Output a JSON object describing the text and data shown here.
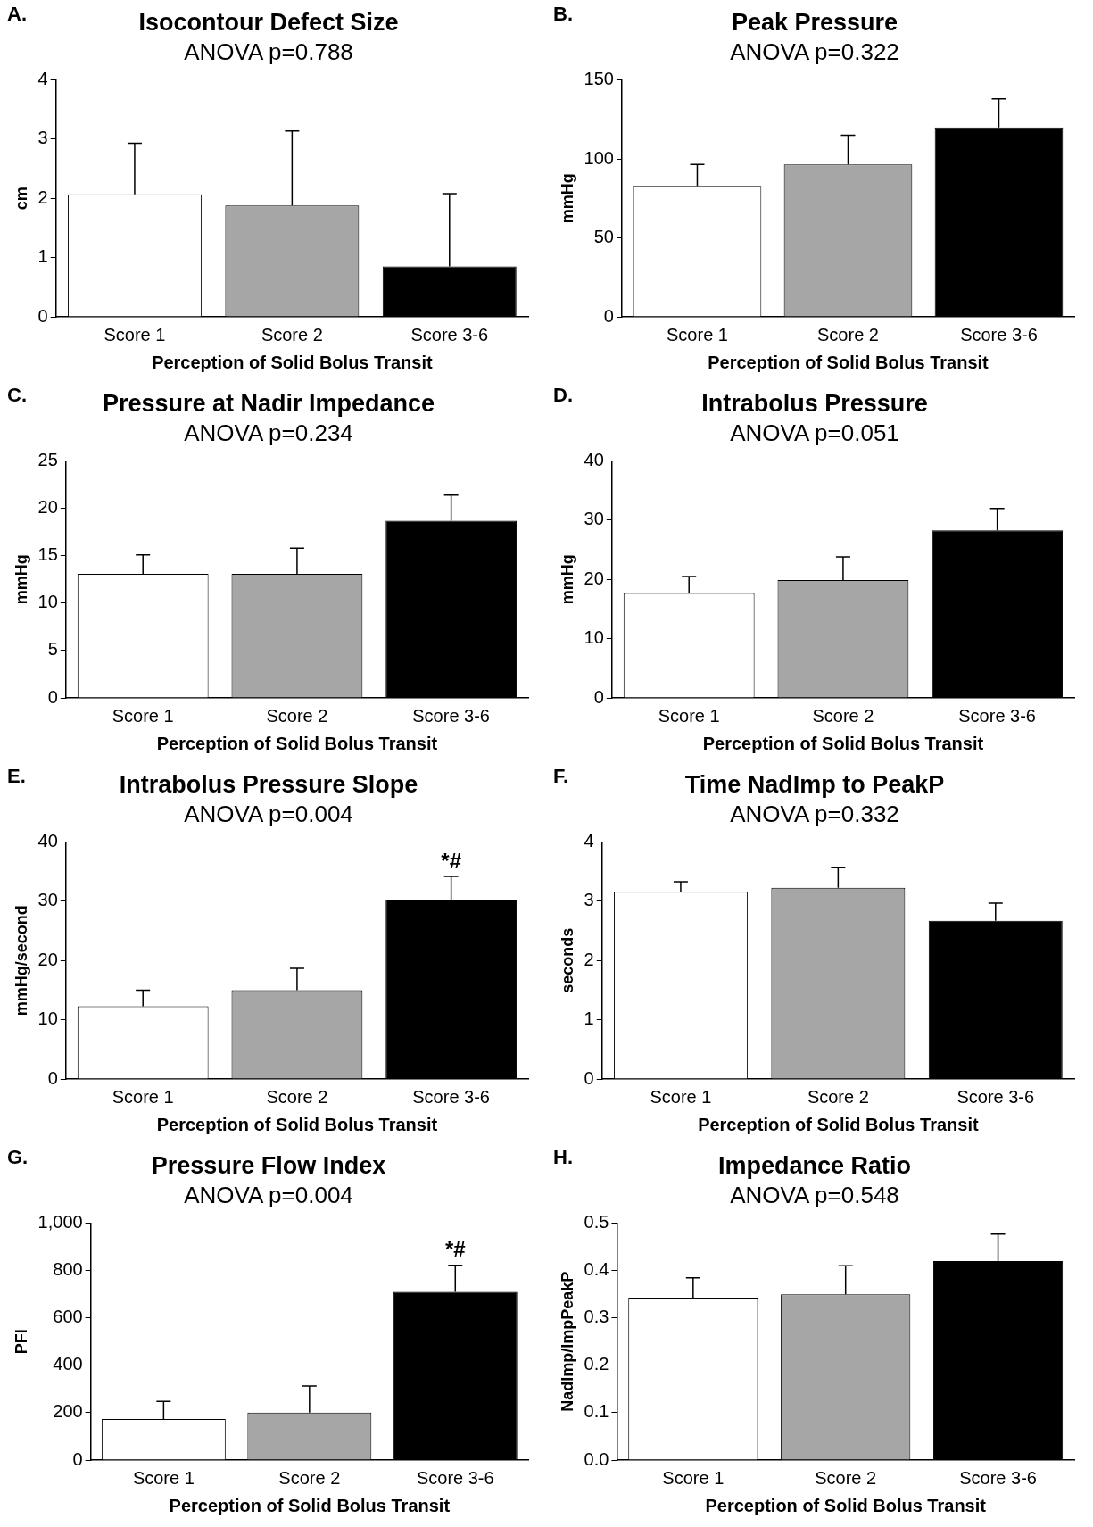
{
  "chart_data": [
    {
      "type": "bar",
      "title": "Isocontour Defect Size",
      "subtitle": "ANOVA p=0.788",
      "xlabel": "Perception of Solid Bolus Transit",
      "ylabel": "cm",
      "annotations": [
        "A."
      ],
      "categories": [
        "Score 1",
        "Score 2",
        "Score 3-6"
      ],
      "values": [
        2.07,
        1.88,
        0.85
      ],
      "errors": [
        [
          2.07,
          2.93
        ],
        [
          1.88,
          3.14
        ],
        [
          0.85,
          2.08
        ]
      ],
      "colors": [
        "#ffffff",
        "#a6a6a6",
        "#000000"
      ],
      "ylim": [
        0,
        4
      ],
      "yticks": [
        0,
        1,
        2,
        3,
        4
      ]
    },
    {
      "type": "bar",
      "title": "Peak Pressure",
      "subtitle": "ANOVA p=0.322",
      "xlabel": "Perception of Solid Bolus Transit",
      "ylabel": "mmHg",
      "annotations": [
        "B."
      ],
      "categories": [
        "Score 1",
        "Score 2",
        "Score 3-6"
      ],
      "values": [
        83,
        96.5,
        120
      ],
      "errors": [
        [
          83,
          96.5
        ],
        [
          96.5,
          115
        ],
        [
          120,
          138
        ]
      ],
      "colors": [
        "#ffffff",
        "#a6a6a6",
        "#000000"
      ],
      "ylim": [
        0,
        150
      ],
      "yticks": [
        0,
        50,
        100,
        150
      ]
    },
    {
      "type": "bar",
      "title": "Pressure at Nadir Impedance",
      "subtitle": "ANOVA p=0.234",
      "xlabel": "Perception of Solid Bolus Transit",
      "ylabel": "mmHg",
      "annotations": [
        "C."
      ],
      "categories": [
        "Score 1",
        "Score 2",
        "Score 3-6"
      ],
      "values": [
        13.1,
        13.1,
        18.7
      ],
      "errors": [
        [
          13.1,
          15.1
        ],
        [
          13.1,
          15.8
        ],
        [
          18.7,
          21.4
        ]
      ],
      "colors": [
        "#ffffff",
        "#a6a6a6",
        "#000000"
      ],
      "ylim": [
        0,
        25
      ],
      "yticks": [
        0,
        5,
        10,
        15,
        20,
        25
      ]
    },
    {
      "type": "bar",
      "title": "Intrabolus Pressure",
      "subtitle": "ANOVA p=0.051",
      "xlabel": "Perception of Solid Bolus Transit",
      "ylabel": "mmHg",
      "annotations": [
        "D."
      ],
      "categories": [
        "Score 1",
        "Score 2",
        "Score 3-6"
      ],
      "values": [
        17.7,
        19.9,
        28.3
      ],
      "errors": [
        [
          17.7,
          20.5
        ],
        [
          19.9,
          23.8
        ],
        [
          28.3,
          32
        ]
      ],
      "colors": [
        "#ffffff",
        "#a6a6a6",
        "#000000"
      ],
      "ylim": [
        0,
        40
      ],
      "yticks": [
        0,
        10,
        20,
        30,
        40
      ]
    },
    {
      "type": "bar",
      "title": "Intrabolus Pressure Slope",
      "subtitle": "ANOVA p=0.004",
      "xlabel": "Perception of Solid Bolus Transit",
      "ylabel": "mmHg/second",
      "annotations": [
        "E.",
        {
          "text": "*#",
          "x": "Score 3-6",
          "y": 34.2
        }
      ],
      "categories": [
        "Score 1",
        "Score 2",
        "Score 3-6"
      ],
      "values": [
        12.3,
        15,
        30.3
      ],
      "errors": [
        [
          12.3,
          15
        ],
        [
          15,
          18.7
        ],
        [
          30.3,
          34.2
        ]
      ],
      "colors": [
        "#ffffff",
        "#a6a6a6",
        "#000000"
      ],
      "ylim": [
        0,
        40
      ],
      "yticks": [
        0,
        10,
        20,
        30,
        40
      ]
    },
    {
      "type": "bar",
      "title": "Time NadImp to PeakP",
      "subtitle": "ANOVA p=0.332",
      "xlabel": "Perception of Solid Bolus Transit",
      "ylabel": "seconds",
      "annotations": [
        "F."
      ],
      "categories": [
        "Score 1",
        "Score 2",
        "Score 3-6"
      ],
      "values": [
        3.16,
        3.23,
        2.67
      ],
      "errors": [
        [
          3.16,
          3.33
        ],
        [
          3.23,
          3.57
        ],
        [
          2.67,
          2.97
        ]
      ],
      "colors": [
        "#ffffff",
        "#a6a6a6",
        "#000000"
      ],
      "ylim": [
        0,
        4
      ],
      "yticks": [
        0,
        1,
        2,
        3,
        4
      ]
    },
    {
      "type": "bar",
      "title": "Pressure Flow Index",
      "subtitle": "ANOVA p=0.004",
      "xlabel": "Perception of Solid Bolus Transit",
      "ylabel": "PFI",
      "annotations": [
        "G.",
        {
          "text": "*#",
          "x": "Score 3-6",
          "y": 822
        }
      ],
      "categories": [
        "Score 1",
        "Score 2",
        "Score 3-6"
      ],
      "values": [
        173,
        201,
        710
      ],
      "errors": [
        [
          173,
          248
        ],
        [
          201,
          313
        ],
        [
          710,
          822
        ]
      ],
      "colors": [
        "#ffffff",
        "#a6a6a6",
        "#000000"
      ],
      "ylim": [
        0,
        1000
      ],
      "yticks": [
        0,
        200,
        400,
        600,
        800,
        {
          "value": 1000,
          "label": "1,000"
        }
      ]
    },
    {
      "type": "bar",
      "title": "Impedance Ratio",
      "subtitle": "ANOVA p=0.548",
      "xlabel": "Perception of Solid Bolus Transit",
      "ylabel": "NadImp/ImpPeakP",
      "annotations": [
        "H."
      ],
      "categories": [
        "Score 1",
        "Score 2",
        "Score 3-6"
      ],
      "values": [
        0.343,
        0.35,
        0.42
      ],
      "errors": [
        [
          0.343,
          0.385
        ],
        [
          0.35,
          0.41
        ],
        [
          0.42,
          0.477
        ]
      ],
      "colors": [
        "#ffffff",
        "#a6a6a6",
        "#000000"
      ],
      "ylim": [
        0,
        0.5
      ],
      "yticks": [
        {
          "value": 0,
          "label": "0.0"
        },
        0.1,
        0.2,
        0.3,
        0.4,
        0.5
      ]
    }
  ]
}
